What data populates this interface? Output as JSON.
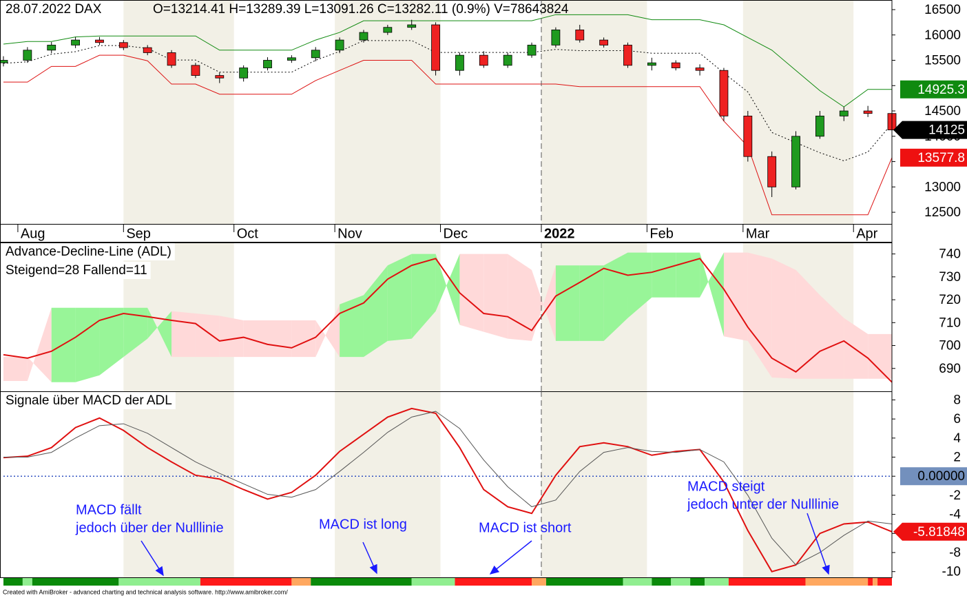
{
  "chart_data": [
    {
      "type": "candlestick",
      "title": "28.07.2022 DAX",
      "subtitle": "O=13214.41  H=13289.39  L=13091.26  C=13282.11 (0.9%)  V=78643824",
      "x": [
        0,
        5,
        10,
        15,
        20,
        25,
        30,
        35,
        40,
        45,
        50,
        55,
        60,
        65,
        70,
        75,
        80,
        85,
        90,
        95,
        100,
        105,
        110,
        115,
        120,
        125,
        130,
        135,
        140,
        145,
        150,
        155,
        160,
        165,
        170,
        175,
        180,
        185
      ],
      "open": [
        15450,
        15500,
        15700,
        15800,
        15900,
        15850,
        15750,
        15650,
        15400,
        15200,
        15150,
        15350,
        15500,
        15550,
        15700,
        15900,
        16050,
        16150,
        16200,
        15300,
        15600,
        15400,
        15600,
        15800,
        16100,
        15900,
        15800,
        15400,
        15450,
        15350,
        15300,
        14400,
        13600,
        13000,
        14000,
        14400,
        14500,
        14450
      ],
      "high": [
        15580,
        15760,
        15860,
        15960,
        15960,
        15900,
        15800,
        15700,
        15450,
        15260,
        15400,
        15560,
        15600,
        15760,
        15950,
        16100,
        16200,
        16300,
        16250,
        15650,
        15680,
        15650,
        15850,
        16150,
        16200,
        15950,
        15850,
        15550,
        15500,
        15420,
        15350,
        14500,
        13700,
        14100,
        14500,
        14580,
        14600,
        14500
      ],
      "low": [
        15380,
        15450,
        15640,
        15740,
        15800,
        15700,
        15600,
        15350,
        15150,
        15050,
        15080,
        15300,
        15450,
        15480,
        15640,
        15850,
        16000,
        16100,
        15200,
        15200,
        15350,
        15350,
        15550,
        15750,
        15850,
        15750,
        15350,
        15300,
        15300,
        15200,
        14300,
        13500,
        12800,
        12950,
        13950,
        14300,
        14380,
        14050
      ],
      "close": [
        15500,
        15700,
        15800,
        15900,
        15850,
        15750,
        15650,
        15400,
        15200,
        15150,
        15350,
        15500,
        15550,
        15700,
        15900,
        16050,
        16150,
        16200,
        15300,
        15600,
        15400,
        15600,
        15800,
        16100,
        15900,
        15800,
        15400,
        15450,
        15350,
        15300,
        14400,
        13600,
        13000,
        14000,
        14400,
        14500,
        14450,
        14125
      ],
      "up_color": "#1f9a1f",
      "down_color": "#ee2222",
      "series": [
        {
          "color": "#108a10",
          "values": [
            15820,
            15870,
            15870,
            15960,
            15980,
            15980,
            15980,
            15980,
            15980,
            15700,
            15700,
            15700,
            15700,
            15900,
            16050,
            16280,
            16280,
            16280,
            16280,
            16280,
            16280,
            16280,
            16280,
            16400,
            16400,
            16400,
            16400,
            16300,
            16300,
            16300,
            16200,
            15950,
            15700,
            15300,
            14900,
            14580,
            14925.3,
            14925.3
          ]
        },
        {
          "color": "#000000",
          "dash": true,
          "values": [
            15440,
            15470,
            15620,
            15670,
            15790,
            15790,
            15735,
            15505,
            15505,
            15265,
            15265,
            15265,
            15265,
            15500,
            15675,
            15890,
            15890,
            15890,
            15655,
            15655,
            15655,
            15655,
            15655,
            15715,
            15690,
            15690,
            15690,
            15640,
            15640,
            15640,
            15250,
            14875,
            14075,
            13875,
            13675,
            13515,
            13690,
            14250
          ]
        },
        {
          "color": "#dd1111",
          "values": [
            15070,
            15070,
            15380,
            15380,
            15600,
            15600,
            15490,
            15030,
            15030,
            14830,
            14830,
            14830,
            14830,
            15100,
            15300,
            15500,
            15500,
            15500,
            15030,
            15030,
            15030,
            15030,
            15030,
            15030,
            14980,
            14980,
            14980,
            14980,
            14980,
            14980,
            14300,
            13800,
            12450,
            12450,
            12450,
            12450,
            12450,
            13577.8
          ]
        }
      ],
      "badges": [
        {
          "value": 14925.3,
          "color": "#108a10"
        },
        {
          "value": 14125,
          "color": "#000000",
          "pointer": true
        },
        {
          "value": 13577.8,
          "color": "#ee1111"
        }
      ],
      "xlim": [
        0,
        185
      ],
      "xticks": [
        {
          "value": 3,
          "label": "Aug"
        },
        {
          "value": 25,
          "label": "Sep"
        },
        {
          "value": 48,
          "label": "Oct"
        },
        {
          "value": 69,
          "label": "Nov"
        },
        {
          "value": 91,
          "label": "Dec"
        },
        {
          "value": 112,
          "label": "2022"
        },
        {
          "value": 134,
          "label": "Feb"
        },
        {
          "value": 154,
          "label": "Mar"
        },
        {
          "value": 177,
          "label": "Apr"
        }
      ],
      "ylim": [
        12270,
        16690
      ],
      "yticks": [
        16500,
        16000,
        15500,
        15000,
        14500,
        14000,
        13500,
        13000,
        12500
      ]
    },
    {
      "type": "line",
      "title": "Advance-Decline-Line (ADL)",
      "subtitle": "Steigend=28  Fallend=11",
      "x": [
        0,
        5,
        10,
        15,
        20,
        25,
        30,
        35,
        40,
        45,
        50,
        55,
        60,
        65,
        70,
        75,
        80,
        85,
        90,
        95,
        100,
        105,
        110,
        115,
        120,
        125,
        130,
        135,
        140,
        145,
        150,
        155,
        160,
        165,
        170,
        175,
        180,
        185
      ],
      "series": [
        {
          "color": "#e01010",
          "values": [
            696,
            694.5,
            697.5,
            703.6,
            711,
            714,
            712.6,
            711,
            709.6,
            702,
            703.6,
            700.5,
            699,
            703.6,
            714,
            718.6,
            729,
            735,
            738,
            723,
            714,
            712.6,
            706.6,
            721.6,
            727.6,
            733.7,
            730.7,
            732,
            735,
            738,
            724.6,
            708,
            694.5,
            688.5,
            697.5,
            702,
            694.5,
            684
          ]
        }
      ],
      "cloud": {
        "span_a": [
          684.5,
          684.5,
          716.5,
          716.5,
          716.5,
          716.5,
          716.5,
          695,
          695,
          695,
          695,
          695,
          695,
          695,
          718,
          722,
          735,
          740,
          740,
          709,
          706,
          703,
          702,
          735,
          735,
          735,
          740.6,
          740.6,
          740.6,
          740.6,
          704,
          702,
          686,
          685.5,
          685.5,
          685.5,
          685.5,
          685.5
        ],
        "span_b": [
          695,
          695,
          684,
          684,
          687,
          695,
          703,
          715,
          714,
          713,
          711,
          711,
          711,
          711,
          695,
          695,
          702,
          703,
          715,
          740,
          740,
          740,
          733,
          702,
          702,
          702,
          712,
          721,
          721,
          721,
          740.6,
          740.6,
          738,
          733,
          722,
          712,
          705,
          705
        ],
        "colors": [
          "#98f598",
          "#ffd9d9"
        ]
      },
      "xlim": [
        0,
        185
      ],
      "ylim": [
        680,
        745
      ],
      "yticks": [
        740,
        730,
        720,
        710,
        700,
        690
      ]
    },
    {
      "type": "line",
      "title": "Signale über MACD der ADL",
      "x": [
        0,
        5,
        10,
        15,
        20,
        25,
        30,
        35,
        40,
        45,
        50,
        55,
        60,
        65,
        70,
        75,
        80,
        85,
        90,
        95,
        100,
        105,
        110,
        115,
        120,
        125,
        130,
        135,
        140,
        145,
        150,
        155,
        160,
        165,
        170,
        175,
        180,
        185
      ],
      "series": [
        {
          "color": "#e01010",
          "width": 2,
          "values": [
            1.95,
            2.1,
            3.0,
            5.1,
            6.1,
            4.8,
            3.0,
            1.5,
            0.1,
            -0.3,
            -1.4,
            -2.4,
            -1.7,
            0.1,
            2.6,
            4.4,
            6.2,
            7.1,
            6.6,
            3.0,
            -1.4,
            -3.2,
            -3.9,
            0.1,
            3.1,
            3.5,
            3.1,
            2.2,
            2.6,
            2.8,
            -0.6,
            -5.7,
            -10,
            -9.3,
            -6.0,
            -5.0,
            -4.8,
            -5.81848
          ]
        },
        {
          "color": "#555555",
          "width": 1,
          "values": [
            2.0,
            2.0,
            2.5,
            4.0,
            5.3,
            5.5,
            4.5,
            3.0,
            1.5,
            0.3,
            -0.8,
            -1.9,
            -2.2,
            -1.4,
            0.5,
            2.5,
            4.6,
            6.2,
            6.8,
            5.0,
            1.7,
            -1.1,
            -3.2,
            -2.5,
            0.5,
            2.5,
            3.0,
            2.6,
            2.5,
            2.8,
            1.5,
            -2.0,
            -6.5,
            -9.3,
            -8.0,
            -6.2,
            -4.7,
            -5.0
          ]
        }
      ],
      "badges": [
        {
          "value": -5.81848,
          "color": "#ee1111",
          "pointer": true
        }
      ],
      "zero_line_color": "#3050c0",
      "strip": {
        "starts": [
          0,
          4,
          6,
          24,
          41,
          60,
          64,
          85,
          94,
          110,
          113,
          129,
          135,
          139,
          143,
          146,
          151,
          167,
          180,
          181,
          182
        ],
        "colors": [
          "#0a8a0a",
          "#90ee90",
          "#0a8a0a",
          "#90ee90",
          "#ff1a1a",
          "#ffa860",
          "#0a8a0a",
          "#90ee90",
          "#ff1a1a",
          "#ffa860",
          "#0a8a0a",
          "#90ee90",
          "#0a8a0a",
          "#90ee90",
          "#0a8a0a",
          "#90ee90",
          "#ff1a1a",
          "#ffa860",
          "#ff1a1a",
          "#ffa860",
          "#ff1a1a"
        ]
      },
      "annotations": [
        {
          "text": [
            "MACD fällt",
            "jedoch über der Nulllinie"
          ]
        },
        {
          "text": [
            "MACD ist long"
          ]
        },
        {
          "text": [
            "MACD ist short"
          ]
        },
        {
          "text": [
            "MACD steigt",
            "jedoch unter der Nulllinie"
          ]
        }
      ],
      "xlim": [
        0,
        185
      ],
      "ylim": [
        -10.6,
        8.9
      ],
      "yticks": [
        8,
        6,
        4,
        2,
        {
          "value": 0,
          "label": "0.00000"
        },
        -2,
        -4,
        -6,
        -8,
        -10
      ]
    }
  ],
  "footer": "Created with AmiBroker - advanced charting and technical analysis software. http://www.amibroker.com/"
}
